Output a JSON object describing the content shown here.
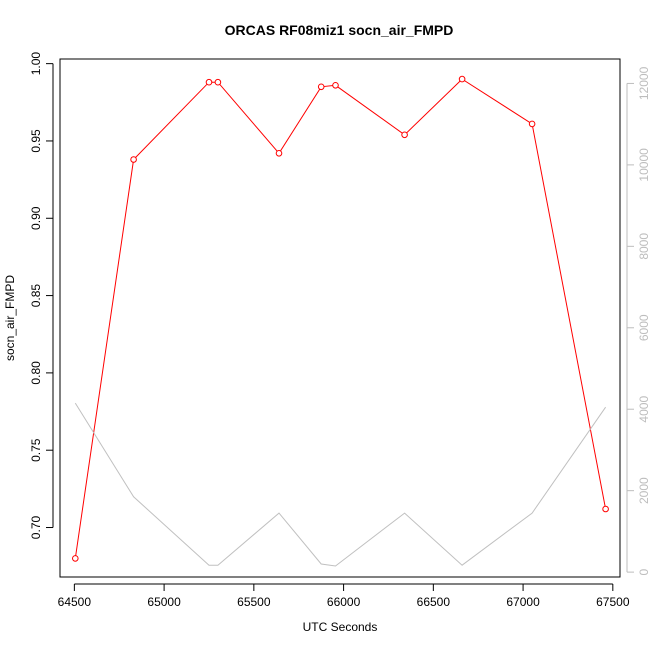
{
  "chart_data": {
    "type": "line",
    "title": "ORCAS RF08miz1 socn_air_FMPD",
    "xlabel": "UTC Seconds",
    "ylabel": "socn_air_FMPD",
    "xlim": [
      64420,
      67540
    ],
    "ylim": [
      0.668,
      1.003
    ],
    "x_ticks": [
      64500,
      65000,
      65500,
      66000,
      66500,
      67000,
      67500
    ],
    "y_ticks": [
      0.7,
      0.75,
      0.8,
      0.85,
      0.9,
      0.95,
      1.0
    ],
    "y_tick_labels": [
      "0.70",
      "0.75",
      "0.80",
      "0.85",
      "0.90",
      "0.95",
      "1.00"
    ],
    "y2lim": [
      -120,
      12600
    ],
    "y2_ticks": [
      0,
      2000,
      4000,
      6000,
      8000,
      10000,
      12000
    ],
    "grid": false,
    "series": [
      {
        "color": "#ff0000",
        "axis": "left",
        "marker": "open-circle",
        "x": [
          64505,
          64830,
          65250,
          65300,
          65640,
          65875,
          65955,
          66340,
          66660,
          67050,
          67460
        ],
        "values": [
          0.68,
          0.938,
          0.988,
          0.988,
          0.942,
          0.985,
          0.986,
          0.954,
          0.99,
          0.961,
          0.712
        ]
      },
      {
        "color": "#c0c0c0",
        "axis": "right",
        "marker": "none",
        "x": [
          64505,
          64830,
          65250,
          65300,
          65640,
          65875,
          65955,
          66340,
          66660,
          67050,
          67460
        ],
        "values": [
          4150,
          1850,
          170,
          170,
          1450,
          200,
          150,
          1450,
          170,
          1450,
          4050
        ]
      }
    ]
  }
}
